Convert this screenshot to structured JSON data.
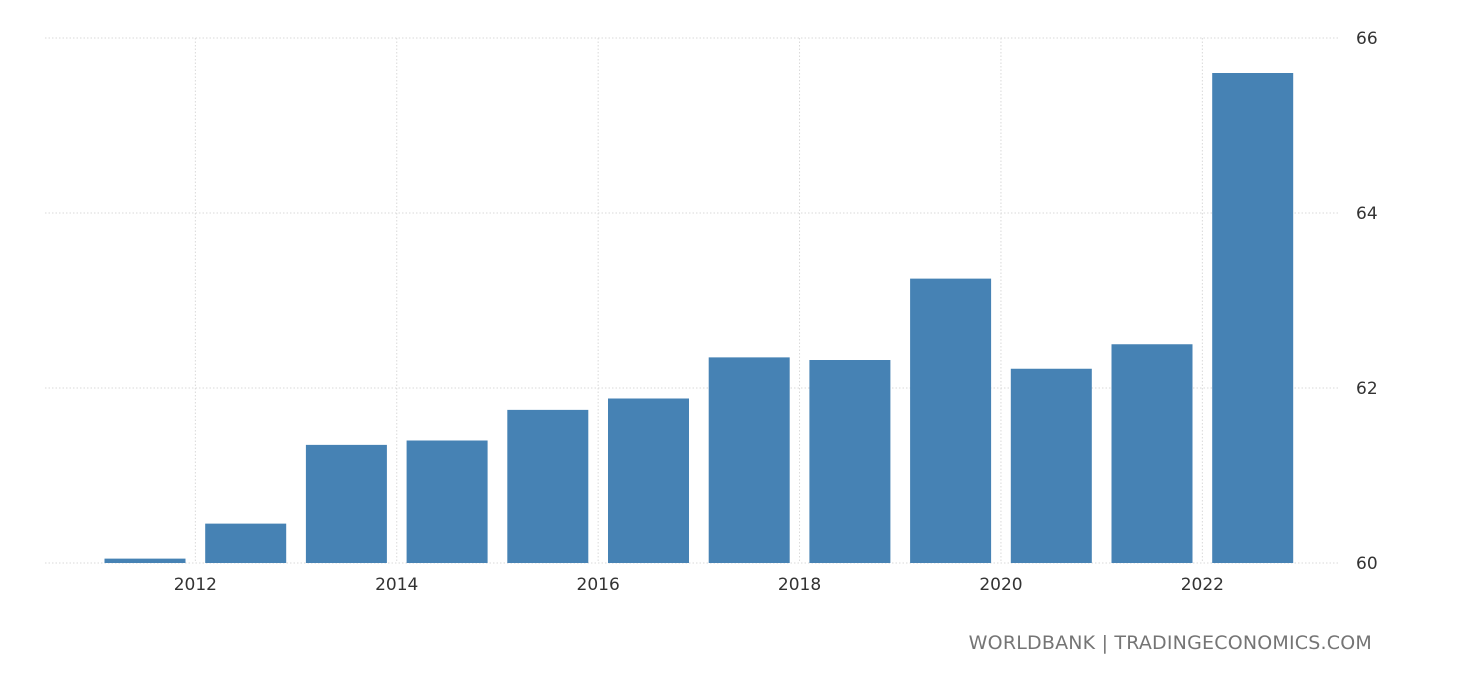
{
  "chart_data": {
    "type": "bar",
    "title": "",
    "xlabel": "",
    "ylabel": "",
    "categories": [
      "2011",
      "2012",
      "2013",
      "2014",
      "2015",
      "2016",
      "2017",
      "2018",
      "2019",
      "2020",
      "2021",
      "2022"
    ],
    "values": [
      60.05,
      60.45,
      61.35,
      61.4,
      61.75,
      61.88,
      62.35,
      62.32,
      63.25,
      62.22,
      62.5,
      65.6
    ],
    "ylim": [
      60,
      66
    ],
    "yticks": [
      "60",
      "62",
      "64",
      "66"
    ],
    "xtick_labels": [
      "2012",
      "2014",
      "2016",
      "2018",
      "2020",
      "2022"
    ],
    "grid": true,
    "bar_color": "#4682b4",
    "y_axis_side": "right"
  },
  "credit": "WORLDBANK | TRADINGECONOMICS.COM"
}
